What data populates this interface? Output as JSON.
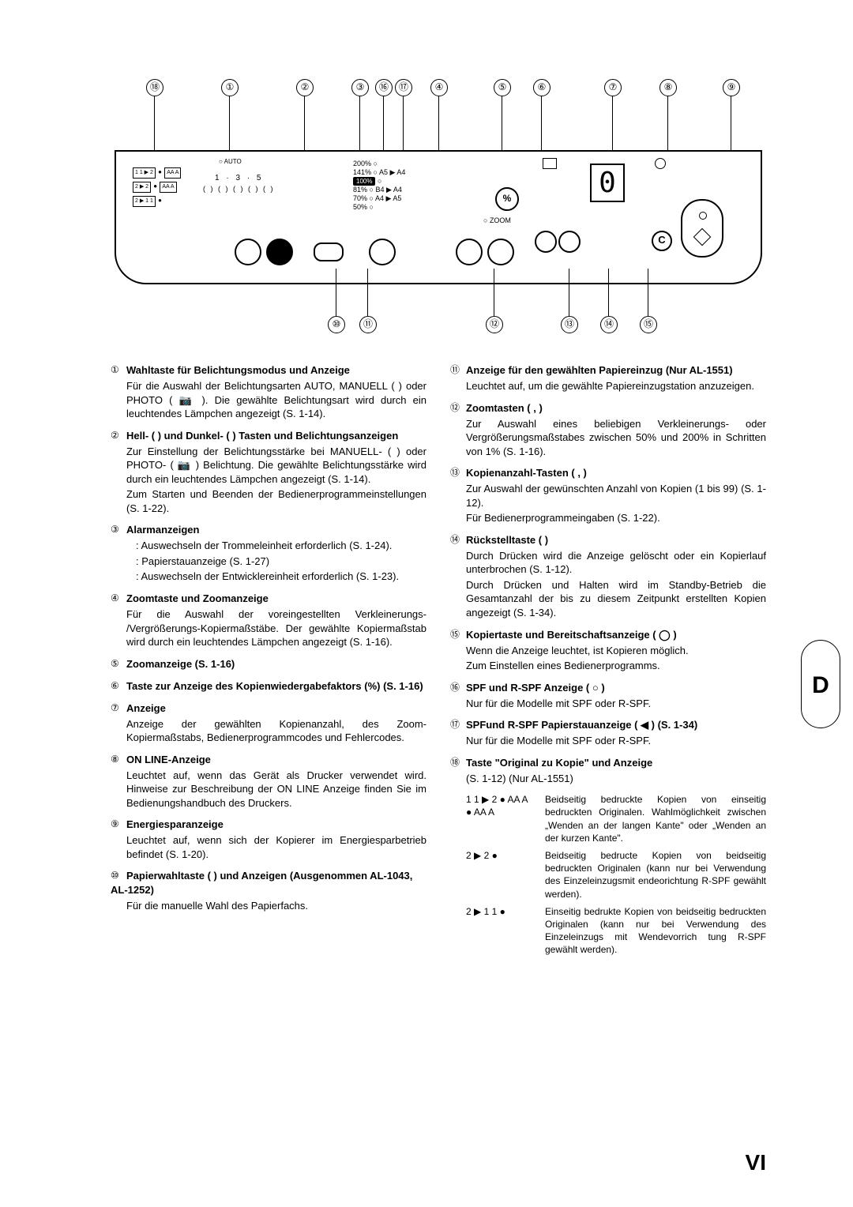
{
  "page_number": "VI",
  "side_tab": "D",
  "panel": {
    "zoom_levels": [
      "200%",
      "141%",
      "100%",
      "81%",
      "70%",
      "50%"
    ],
    "zoom_sizes": [
      "",
      "A5 ▶ A4",
      "",
      "B4 ▶ A4",
      "A4 ▶ A5",
      ""
    ],
    "zoom_label": "ZOOM",
    "percent_label": "%",
    "display_value": "0",
    "clear_label": "C",
    "auto_label": "○ AUTO",
    "expo_scale": "1 · 3 · 5",
    "mode_row1": "1 1 ▶ 2",
    "mode_row2": "2 ▶ 2",
    "mode_row3": "2 ▶ 1 1",
    "aa1": "AA A",
    "aa2": "AA A"
  },
  "calls_top": {
    "18": 40,
    "1": 135,
    "2": 230,
    "3": 300,
    "16": 330,
    "17": 355,
    "4": 400,
    "5": 480,
    "6": 530,
    "7": 620,
    "8": 690,
    "9": 770
  },
  "calls_bot": {
    "10": 270,
    "11": 310,
    "12": 470,
    "13": 565,
    "14": 615,
    "15": 665
  },
  "left": [
    {
      "n": "①",
      "t": "Wahltaste für Belichtungsmodus und Anzeige",
      "d": [
        "Für die Auswahl der Belichtungsarten AUTO, MANUELL (      ) oder PHOTO ( 📷 ). Die gewählte Belichtungsart wird durch ein leuchtendes Lämpchen angezeigt (S. 1-14)."
      ]
    },
    {
      "n": "②",
      "t": "Hell- (   ) und Dunkel- (   ) Tasten und Belichtungs­anzeigen",
      "d": [
        "Zur Einstellung der Belichtungsstärke bei MANUELL- (      ) oder PHOTO- ( 📷 ) Belichtung. Die gewählte Belichtungsstärke wird durch ein leuchtendes Lämpchen angezeigt (S. 1-14).",
        "Zum Starten und Beenden der Bedienerprogramm­einstellungen (S. 1-22)."
      ]
    },
    {
      "n": "③",
      "t": "Alarmanzeigen",
      "d": [
        ": Auswechseln der Trommeleinheit erforderlich (S. 1-24).",
        ": Papierstauanzeige (S. 1-27)",
        ": Auswechseln der Entwicklereinheit erforderlich (S. 1-23)."
      ]
    },
    {
      "n": "④",
      "t": "Zoomtaste und Zoomanzeige",
      "d": [
        "Für die Auswahl der voreingestellten Verkleinerungs- /Vergrößerungs-Kopiermaßstäbe. Der gewählte Kopiermaßstab wird durch ein leuchtendes Lämpchen angezeigt (S. 1-16)."
      ]
    },
    {
      "n": "⑤",
      "t": "Zoomanzeige (S. 1-16)",
      "d": []
    },
    {
      "n": "⑥",
      "t": "Taste zur Anzeige des Kopienwiedergabefaktors (%) (S. 1-16)",
      "d": []
    },
    {
      "n": "⑦",
      "t": "Anzeige",
      "d": [
        "Anzeige der gewählten Kopienanzahl, des Zoom-Kopiermaßstabs, Bedienerprogrammcodes und Fehlercodes."
      ]
    },
    {
      "n": "⑧",
      "t": "ON LINE-Anzeige",
      "d": [
        "Leuchtet auf, wenn das Gerät als Drucker verwendet wird. Hinweise zur Beschreibung der ON LINE Anzeige finden Sie im Bedienungshandbuch des Druckers."
      ]
    },
    {
      "n": "⑨",
      "t": "Energiesparanzeige",
      "d": [
        "Leuchtet auf, wenn sich der Kopierer im Energiesparbetrieb befindet (S. 1-20)."
      ]
    },
    {
      "n": "⑩",
      "t": "Papierwahltaste (   ) und Anzeigen (Ausgenommen AL-1043, AL-1252)",
      "d": [
        "Für die manuelle Wahl des Papierfachs."
      ]
    }
  ],
  "right": [
    {
      "n": "⑪",
      "t": "Anzeige für den gewählten Papiereinzug (Nur AL-1551)",
      "d": [
        "Leuchtet auf, um die gewählte Papiereinzugstation anzuzeigen."
      ]
    },
    {
      "n": "⑫",
      "t": "Zoomtasten (   ,   )",
      "d": [
        "Zur Auswahl eines beliebigen Verkleinerungs- oder Vergrößerungsmaßstabes zwischen 50% und 200% in Schritten von 1% (S. 1-16)."
      ]
    },
    {
      "n": "⑬",
      "t": "Kopienanzahl-Tasten (   ,   )",
      "d": [
        "Zur Auswahl der gewünschten Anzahl von Kopien (1 bis 99) (S. 1-12).",
        "Für Bedienerprogrammeingaben (S. 1-22)."
      ]
    },
    {
      "n": "⑭",
      "t": "Rückstelltaste (   )",
      "d": [
        "Durch Drücken wird die Anzeige gelöscht oder ein Kopierlauf unterbrochen (S. 1-12).",
        "Durch Drücken und Halten wird im Standby-Betrieb die Gesamtanzahl der bis zu diesem Zeitpunkt erstellten Kopien angezeigt (S. 1-34)."
      ]
    },
    {
      "n": "⑮",
      "t": "Kopiertaste und Bereitschaftsanzeige ( ◯ )",
      "d": [
        "Wenn die Anzeige leuchtet, ist Kopieren möglich.",
        "Zum Einstellen eines Bedienerprogramms."
      ]
    },
    {
      "n": "⑯",
      "t": "SPF und R-SPF Anzeige ( ○ )",
      "d": [
        "Nur für die Modelle mit SPF oder R-SPF."
      ]
    },
    {
      "n": "⑰",
      "t": "SPFund R-SPF Papierstauanzeige ( ◀ ) (S. 1-34)",
      "d": [
        "Nur für die Modelle mit SPF oder R-SPF."
      ]
    },
    {
      "n": "⑱",
      "t": "Taste \"Original zu Kopie\" und Anzeige",
      "d": [
        "(S. 1-12) (Nur AL-1551)"
      ]
    }
  ],
  "item18_rows": [
    {
      "glyph": "1 1 ▶ 2  ● AA A\n           ● AA A",
      "text": "Beidseitig bedruckte Kopien von einseitig bedruckten Originalen. Wahlmöglichkeit zwischen „Wenden an der langen Kante\" oder „Wenden an der kurzen Kante\"."
    },
    {
      "glyph": "2 ▶ 2      ●",
      "text": "Beidseitig bedructe Kopien von beidseitig bedruckten Originalen (kann nur bei Verwendung des Einzeleinzugsmit endeorichtung R-SPF gewählt werden)."
    },
    {
      "glyph": "2 ▶ 1 1   ●",
      "text": "Einseitig bedrukte Kopien von beidseitig bedruckten Originalen (kann nur bei Verwendung des Einzeleinzugs mit Wendevorrich tung R-SPF gewählt werden)."
    }
  ]
}
